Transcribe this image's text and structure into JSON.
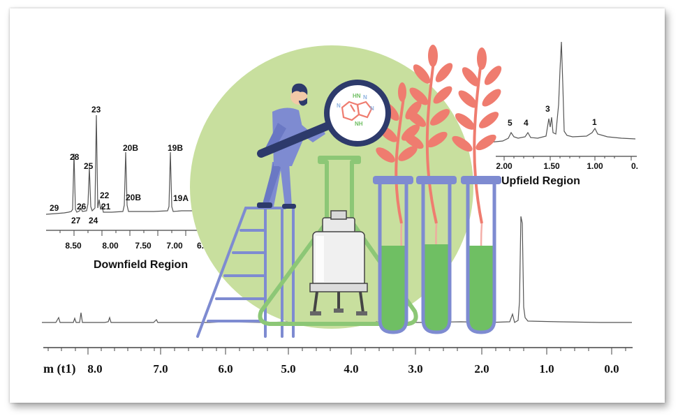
{
  "regions": {
    "downfield_label": "Downfield Region",
    "upfield_label": "Upfield Region"
  },
  "axes": {
    "main_axis_title": "m (t1)",
    "main_ticks": [
      "8.0",
      "7.0",
      "6.0",
      "5.0",
      "4.0",
      "3.0",
      "2.0",
      "1.0",
      "0.0"
    ],
    "downfield_ticks": [
      "8.50",
      "8.00",
      "7.50",
      "7.00",
      "6."
    ],
    "upfield_ticks": [
      "2.00",
      "1.50",
      "1.00",
      "0."
    ]
  },
  "peaks": {
    "downfield": [
      "29",
      "28",
      "27",
      "26",
      "25",
      "24",
      "23",
      "22",
      "21",
      "20B",
      "20B",
      "19B",
      "19A"
    ],
    "upfield": [
      "5",
      "4",
      "3",
      "1"
    ]
  },
  "molecule": {
    "atoms": [
      "HN",
      "N",
      "N",
      "N",
      "NH"
    ]
  },
  "colors": {
    "green_circle": "#c8df9e",
    "figure_blue": "#7e8bd1",
    "flask_green": "#8cc776",
    "tube_fill": "#6fbf63",
    "leaf_red": "#ef7c6f",
    "spectrum_line": "#555555"
  }
}
